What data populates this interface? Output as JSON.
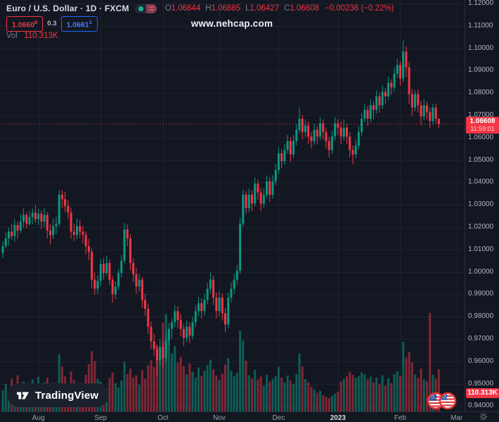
{
  "header": {
    "title": "Euro / U.S. Dollar · 1D · FXCM",
    "ohlc": {
      "o_label": "O",
      "o_value": "1.06844",
      "h_label": "H",
      "h_value": "1.06885",
      "l_label": "L",
      "l_value": "1.06427",
      "c_label": "C",
      "c_value": "1.06608",
      "change": "−0.00236 (−0.22%)"
    },
    "sell": {
      "price": "1.0660",
      "sup": "8"
    },
    "spread": "0.3",
    "buy": {
      "price": "1.0661",
      "sup": "1"
    },
    "volume": {
      "label": "Vol",
      "value": "110.313K"
    },
    "watermark": "www.nehcap.com"
  },
  "price_axis": {
    "labels": [
      "1.12000",
      "1.11000",
      "1.10000",
      "1.09000",
      "1.08000",
      "1.07000",
      "1.06000",
      "1.05000",
      "1.04000",
      "1.03000",
      "1.02000",
      "1.01000",
      "1.00000",
      "0.99000",
      "0.98000",
      "0.97000",
      "0.96000",
      "0.95000",
      "0.94000"
    ],
    "last_price": "1.06608",
    "countdown": "11:59:01",
    "last_volume": "110.313K"
  },
  "time_axis": {
    "labels": [
      {
        "text": "Aug",
        "idx": 12,
        "year": false
      },
      {
        "text": "Sep",
        "idx": 33,
        "year": false
      },
      {
        "text": "Oct",
        "idx": 54,
        "year": false
      },
      {
        "text": "Nov",
        "idx": 73,
        "year": false
      },
      {
        "text": "Dec",
        "idx": 93,
        "year": false
      },
      {
        "text": "2023",
        "idx": 113,
        "year": true
      },
      {
        "text": "Feb",
        "idx": 134,
        "year": false
      },
      {
        "text": "Mar",
        "idx": 153,
        "year": false
      }
    ]
  },
  "logo": {
    "text": "TradingView"
  },
  "colors": {
    "background": "#131722",
    "up": "#089981",
    "down": "#f23645",
    "volume_up": "rgba(8,153,129,0.55)",
    "volume_down": "rgba(242,54,69,0.5)",
    "grid": "#1d2230",
    "axis_text": "#b2b5be",
    "label_red": "#f23645",
    "buy_blue": "#2962ff"
  },
  "chart_data": {
    "type": "candlestick",
    "symbol": "EUR/USD",
    "exchange": "FXCM",
    "timeframe": "1D",
    "visible_range": {
      "from": "Aug 2022",
      "to": "Feb 2023"
    },
    "price_axis_range": [
      0.94,
      1.12
    ],
    "last": {
      "open": 1.06844,
      "high": 1.06885,
      "low": 1.06427,
      "close": 1.06608,
      "change": -0.00236,
      "change_pct": -0.22,
      "volume_k": 110.313,
      "countdown": "11:59:01"
    },
    "volume_max_k": 258,
    "candles": [
      [
        1.0085,
        1.0138,
        1.0062,
        1.0115,
        55
      ],
      [
        1.0115,
        1.0178,
        1.0104,
        1.015,
        72
      ],
      [
        1.015,
        1.0198,
        1.0118,
        1.018,
        48
      ],
      [
        1.018,
        1.0215,
        1.0145,
        1.016,
        86
      ],
      [
        1.016,
        1.0235,
        1.0135,
        1.021,
        64
      ],
      [
        1.021,
        1.0225,
        1.0148,
        1.0185,
        95
      ],
      [
        1.0185,
        1.0255,
        1.0173,
        1.0225,
        58
      ],
      [
        1.0225,
        1.0283,
        1.0197,
        1.0255,
        78
      ],
      [
        1.0255,
        1.0267,
        1.0195,
        1.0215,
        62
      ],
      [
        1.0215,
        1.0273,
        1.0205,
        1.0245,
        50
      ],
      [
        1.0245,
        1.0283,
        1.0213,
        1.0265,
        84
      ],
      [
        1.0265,
        1.0299,
        1.022,
        1.0235,
        69
      ],
      [
        1.0235,
        1.0282,
        1.021,
        1.026,
        91
      ],
      [
        1.026,
        1.0275,
        1.0192,
        1.0225,
        57
      ],
      [
        1.0225,
        1.0285,
        1.02,
        1.0255,
        76
      ],
      [
        1.0255,
        1.0268,
        1.015,
        1.0185,
        88
      ],
      [
        1.0185,
        1.0213,
        1.0123,
        1.0165,
        66
      ],
      [
        1.0165,
        1.0238,
        1.0147,
        1.0205,
        54
      ],
      [
        1.0205,
        1.0247,
        1.017,
        1.0215,
        73
      ],
      [
        1.0215,
        1.0368,
        1.0202,
        1.0345,
        150
      ],
      [
        1.0345,
        1.0365,
        1.0285,
        1.0325,
        118
      ],
      [
        1.0325,
        1.0359,
        1.0268,
        1.0295,
        92
      ],
      [
        1.0295,
        1.0322,
        1.0235,
        1.0265,
        71
      ],
      [
        1.0265,
        1.0287,
        1.0148,
        1.018,
        105
      ],
      [
        1.018,
        1.0216,
        1.0138,
        1.0165,
        83
      ],
      [
        1.0165,
        1.0238,
        1.0145,
        1.0205,
        61
      ],
      [
        1.0205,
        1.0232,
        1.0152,
        1.018,
        75
      ],
      [
        1.018,
        1.0205,
        1.0128,
        1.0165,
        58
      ],
      [
        1.0165,
        1.0182,
        1.0078,
        1.0115,
        96
      ],
      [
        1.0115,
        1.0148,
        1.0052,
        1.009,
        124
      ],
      [
        1.009,
        1.0105,
        0.9928,
        0.9965,
        158
      ],
      [
        0.9965,
        0.9998,
        0.99,
        0.9925,
        132
      ],
      [
        0.9925,
        0.9985,
        0.9902,
        0.996,
        85
      ],
      [
        0.996,
        1.0058,
        0.9938,
        1.0035,
        78
      ],
      [
        1.0035,
        1.0062,
        0.9965,
        0.9995,
        67
      ],
      [
        0.9995,
        1.0072,
        0.9982,
        1.004,
        59
      ],
      [
        1.004,
        1.0055,
        0.9942,
        0.9965,
        88
      ],
      [
        0.9965,
        0.9982,
        0.9862,
        0.99,
        102
      ],
      [
        0.99,
        0.9958,
        0.9878,
        0.9935,
        74
      ],
      [
        0.9935,
        1.0012,
        0.992,
        0.9995,
        63
      ],
      [
        0.9995,
        1.0075,
        0.9975,
        1.005,
        81
      ],
      [
        1.005,
        1.022,
        1.0038,
        1.019,
        130
      ],
      [
        1.019,
        1.0212,
        1.0115,
        1.015,
        98
      ],
      [
        1.015,
        1.0168,
        1.0008,
        1.004,
        112
      ],
      [
        1.004,
        1.0062,
        0.9955,
        0.999,
        89
      ],
      [
        0.999,
        1.0018,
        0.9902,
        0.9935,
        95
      ],
      [
        0.9935,
        0.9992,
        0.9912,
        0.9965,
        70
      ],
      [
        0.9965,
        0.9978,
        0.9838,
        0.9875,
        108
      ],
      [
        0.9875,
        0.9902,
        0.9805,
        0.9835,
        86
      ],
      [
        0.9835,
        0.9858,
        0.9722,
        0.9755,
        121
      ],
      [
        0.9755,
        0.9778,
        0.9655,
        0.969,
        134
      ],
      [
        0.969,
        0.9722,
        0.9622,
        0.9655,
        116
      ],
      [
        0.9655,
        0.9675,
        0.9535,
        0.9605,
        172
      ],
      [
        0.9605,
        0.9698,
        0.9582,
        0.9665,
        148
      ],
      [
        0.9665,
        0.9688,
        0.9572,
        0.9615,
        232
      ],
      [
        0.9615,
        0.9728,
        0.9598,
        0.9695,
        255
      ],
      [
        0.9695,
        0.9772,
        0.9668,
        0.9745,
        198
      ],
      [
        0.9745,
        0.9792,
        0.9702,
        0.9775,
        152
      ],
      [
        0.9775,
        0.9852,
        0.9752,
        0.9825,
        171
      ],
      [
        0.9825,
        0.9848,
        0.9748,
        0.9785,
        128
      ],
      [
        0.9785,
        0.9812,
        0.9712,
        0.9745,
        143
      ],
      [
        0.9745,
        0.9768,
        0.9668,
        0.9705,
        119
      ],
      [
        0.9705,
        0.9782,
        0.9688,
        0.9755,
        97
      ],
      [
        0.9755,
        0.9775,
        0.9682,
        0.9715,
        126
      ],
      [
        0.9715,
        0.9798,
        0.9698,
        0.9775,
        104
      ],
      [
        0.9775,
        0.9852,
        0.9755,
        0.9825,
        88
      ],
      [
        0.9825,
        0.9888,
        0.9802,
        0.986,
        115
      ],
      [
        0.986,
        0.9882,
        0.9792,
        0.9825,
        93
      ],
      [
        0.9825,
        0.9902,
        0.9805,
        0.9875,
        107
      ],
      [
        0.9875,
        0.9952,
        0.9855,
        0.9925,
        122
      ],
      [
        0.9925,
        0.9998,
        0.9905,
        0.9965,
        136
      ],
      [
        0.9965,
        0.9982,
        0.9852,
        0.9885,
        111
      ],
      [
        0.9885,
        0.9908,
        0.9792,
        0.9825,
        94
      ],
      [
        0.9825,
        0.9912,
        0.9802,
        0.9885,
        82
      ],
      [
        0.9885,
        0.9905,
        0.9782,
        0.9815,
        99
      ],
      [
        0.9815,
        0.9838,
        0.9732,
        0.9765,
        123
      ],
      [
        0.9765,
        0.9908,
        0.9748,
        0.9885,
        140
      ],
      [
        0.9885,
        0.9952,
        0.9862,
        0.9925,
        106
      ],
      [
        0.9925,
        0.9992,
        0.9902,
        0.9965,
        92
      ],
      [
        0.9965,
        1.0032,
        0.9942,
        1.0005,
        101
      ],
      [
        1.0005,
        1.0242,
        0.9992,
        1.0215,
        212
      ],
      [
        1.0215,
        1.0368,
        1.0202,
        1.0345,
        186
      ],
      [
        1.0345,
        1.0362,
        1.0262,
        1.0285,
        133
      ],
      [
        1.0285,
        1.0372,
        1.0268,
        1.0345,
        95
      ],
      [
        1.0345,
        1.0365,
        1.0272,
        1.0305,
        87
      ],
      [
        1.0305,
        1.0422,
        1.0292,
        1.0395,
        109
      ],
      [
        1.0395,
        1.0412,
        1.0322,
        1.0355,
        84
      ],
      [
        1.0355,
        1.0375,
        1.0272,
        1.0305,
        91
      ],
      [
        1.0305,
        1.0372,
        1.0288,
        1.0345,
        68
      ],
      [
        1.0345,
        1.0432,
        1.0328,
        1.0405,
        96
      ],
      [
        1.0405,
        1.0422,
        1.0312,
        1.0345,
        78
      ],
      [
        1.0345,
        1.0432,
        1.0328,
        1.0405,
        85
      ],
      [
        1.0405,
        1.0482,
        1.0388,
        1.0455,
        92
      ],
      [
        1.0455,
        1.0558,
        1.0438,
        1.053,
        117
      ],
      [
        1.053,
        1.0548,
        1.0462,
        1.0495,
        89
      ],
      [
        1.0495,
        1.0572,
        1.0478,
        1.0545,
        76
      ],
      [
        1.0545,
        1.0612,
        1.0528,
        1.0585,
        94
      ],
      [
        1.0585,
        1.0602,
        1.0492,
        1.0525,
        81
      ],
      [
        1.0525,
        1.0612,
        1.0508,
        1.0585,
        72
      ],
      [
        1.0585,
        1.0662,
        1.0565,
        1.0635,
        98
      ],
      [
        1.0635,
        1.0735,
        1.0618,
        1.0685,
        152
      ],
      [
        1.0685,
        1.0702,
        1.0592,
        1.0625,
        118
      ],
      [
        1.0625,
        1.0682,
        1.0602,
        1.0655,
        85
      ],
      [
        1.0655,
        1.0672,
        1.0572,
        1.0605,
        77
      ],
      [
        1.0605,
        1.0625,
        1.0552,
        1.0585,
        64
      ],
      [
        1.0585,
        1.0662,
        1.0568,
        1.0635,
        58
      ],
      [
        1.0635,
        1.0652,
        1.0572,
        1.0605,
        49
      ],
      [
        1.0605,
        1.0692,
        1.0588,
        1.0665,
        54
      ],
      [
        1.0665,
        1.0682,
        1.0592,
        1.0625,
        42
      ],
      [
        1.0625,
        1.0645,
        1.0552,
        1.0585,
        38
      ],
      [
        1.0585,
        1.0605,
        1.0512,
        1.0545,
        35
      ],
      [
        1.0545,
        1.0632,
        1.0528,
        1.0605,
        41
      ],
      [
        1.0605,
        1.0692,
        1.0588,
        1.0665,
        47
      ],
      [
        1.0665,
        1.0682,
        1.0612,
        1.0645,
        52
      ],
      [
        1.0645,
        1.0672,
        1.0572,
        1.0605,
        78
      ],
      [
        1.0605,
        1.0682,
        1.0588,
        1.0645,
        85
      ],
      [
        1.0645,
        1.0662,
        1.0572,
        1.0605,
        92
      ],
      [
        1.0605,
        1.0625,
        1.0512,
        1.0545,
        104
      ],
      [
        1.0545,
        1.0565,
        1.0482,
        1.0525,
        96
      ],
      [
        1.0525,
        1.0592,
        1.0508,
        1.0565,
        88
      ],
      [
        1.0565,
        1.0652,
        1.0548,
        1.0625,
        93
      ],
      [
        1.0625,
        1.0712,
        1.0608,
        1.0685,
        102
      ],
      [
        1.0685,
        1.0752,
        1.0668,
        1.0725,
        97
      ],
      [
        1.0725,
        1.0742,
        1.0652,
        1.0685,
        84
      ],
      [
        1.0685,
        1.0772,
        1.0668,
        1.0745,
        91
      ],
      [
        1.0745,
        1.0762,
        1.0682,
        1.0725,
        76
      ],
      [
        1.0725,
        1.0812,
        1.0708,
        1.0785,
        89
      ],
      [
        1.0785,
        1.0802,
        1.0712,
        1.0745,
        72
      ],
      [
        1.0745,
        1.0832,
        1.0728,
        1.0805,
        95
      ],
      [
        1.0805,
        1.0822,
        1.0752,
        1.0785,
        68
      ],
      [
        1.0785,
        1.0872,
        1.0768,
        1.0845,
        87
      ],
      [
        1.0845,
        1.0862,
        1.0792,
        1.0825,
        74
      ],
      [
        1.0825,
        1.0912,
        1.0808,
        1.0885,
        98
      ],
      [
        1.0885,
        1.0952,
        1.0868,
        1.0925,
        106
      ],
      [
        1.0925,
        1.0942,
        1.0832,
        1.0865,
        94
      ],
      [
        1.0865,
        1.1035,
        1.0848,
        1.0985,
        182
      ],
      [
        1.0985,
        1.1008,
        1.0872,
        1.0915,
        141
      ],
      [
        1.0915,
        1.0938,
        1.0752,
        1.0795,
        156
      ],
      [
        1.0795,
        1.0818,
        1.0698,
        1.0735,
        129
      ],
      [
        1.0735,
        1.0812,
        1.0718,
        1.0795,
        97
      ],
      [
        1.0795,
        1.0815,
        1.0712,
        1.0745,
        88
      ],
      [
        1.0745,
        1.0765,
        1.0658,
        1.0695,
        112
      ],
      [
        1.0695,
        1.0772,
        1.0678,
        1.0745,
        84
      ],
      [
        1.0745,
        1.0762,
        1.0682,
        1.0715,
        79
      ],
      [
        1.0715,
        1.0735,
        1.0642,
        1.0675,
        258
      ],
      [
        1.0675,
        1.0752,
        1.0658,
        1.0735,
        96
      ],
      [
        1.0735,
        1.0752,
        1.0662,
        1.0685,
        87
      ],
      [
        1.06844,
        1.06885,
        1.06427,
        1.06608,
        110.313
      ]
    ]
  }
}
